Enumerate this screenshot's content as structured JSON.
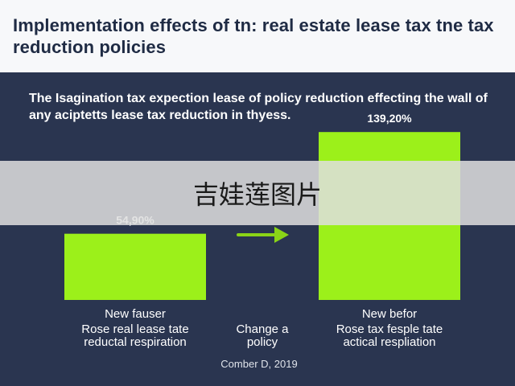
{
  "title": "Implementation effects of tn: real estate lease tax tne tax reduction policies",
  "subtitle": "The Isagination tax expection lease of policy reduction effecting the wall of any aciptetts lease tax reduction in thyess.",
  "watermark": "吉娃莲图片",
  "colors": {
    "background": "#2a3550",
    "header_bg": "#f7f8fa",
    "title_text": "#1f2b44",
    "bar": "#9cf01a",
    "arrow": "#8ad417",
    "text": "#ffffff"
  },
  "chart_data": {
    "type": "bar",
    "categories": [
      "New fauser",
      "New befor"
    ],
    "values": [
      54.9,
      139.2
    ],
    "value_labels": [
      "54,90%",
      "139,20%"
    ],
    "category_descriptions": [
      [
        "Rose real lease tate",
        "reductal respiration"
      ],
      [
        "Rose tax fesple tate",
        "actical respliation"
      ]
    ],
    "middle_label": [
      "Change a",
      "policy"
    ],
    "ylim": [
      0,
      150
    ],
    "grid": false,
    "legend": "none",
    "footer": "Comber D, 2019"
  }
}
